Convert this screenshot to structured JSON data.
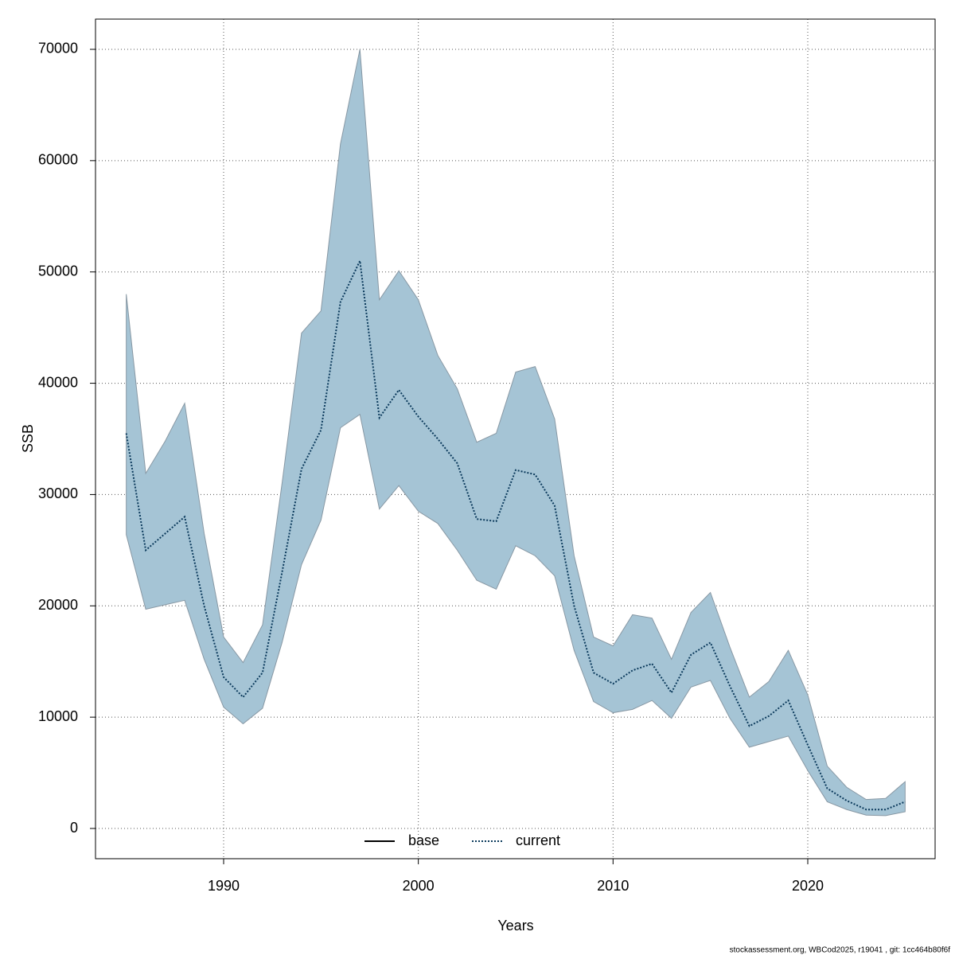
{
  "chart_data": {
    "type": "line",
    "xlabel": "Years",
    "ylabel": "SSB",
    "footer": "stockassessment.org, WBCod2025, r19041 , git: 1cc464b80f6f",
    "x": [
      1985,
      1986,
      1987,
      1988,
      1989,
      1990,
      1991,
      1992,
      1993,
      1994,
      1995,
      1996,
      1997,
      1998,
      1999,
      2000,
      2001,
      2002,
      2003,
      2004,
      2005,
      2006,
      2007,
      2008,
      2009,
      2010,
      2011,
      2012,
      2013,
      2014,
      2015,
      2016,
      2017,
      2018,
      2019,
      2020,
      2021,
      2022,
      2023,
      2024,
      2025
    ],
    "series": [
      {
        "name": "current",
        "color": "#0b3a5c",
        "band_color": "#a5c4d5",
        "values": [
          35500,
          25000,
          26500,
          28000,
          20000,
          13600,
          11800,
          14000,
          23000,
          32300,
          35800,
          47300,
          51000,
          36900,
          39400,
          37000,
          35000,
          32800,
          27800,
          27600,
          32200,
          31800,
          29000,
          20000,
          14000,
          13000,
          14200,
          14800,
          12200,
          15600,
          16700,
          12800,
          9200,
          10100,
          11500,
          7500,
          3600,
          2500,
          1700,
          1700,
          2400
        ],
        "lower": [
          26400,
          19700,
          20100,
          20500,
          15200,
          10900,
          9400,
          10800,
          16700,
          23700,
          27700,
          36000,
          37200,
          28700,
          30800,
          28500,
          27400,
          25000,
          22300,
          21500,
          25400,
          24500,
          22700,
          16000,
          11400,
          10400,
          10700,
          11500,
          9900,
          12700,
          13300,
          9900,
          7300,
          7800,
          8300,
          5200,
          2400,
          1700,
          1200,
          1150,
          1500
        ],
        "upper": [
          48000,
          31900,
          34800,
          38200,
          26500,
          17200,
          14900,
          18300,
          31000,
          44500,
          46500,
          61500,
          70000,
          47500,
          50100,
          47500,
          42500,
          39500,
          34700,
          35500,
          41000,
          41500,
          36800,
          24500,
          17200,
          16400,
          19200,
          18900,
          15200,
          19400,
          21200,
          16300,
          11800,
          13200,
          16000,
          12000,
          5600,
          3700,
          2600,
          2700,
          4200
        ]
      }
    ],
    "legend": [
      {
        "name": "base",
        "color": "#000000",
        "dash": "solid"
      },
      {
        "name": "current",
        "color": "#0b3a5c",
        "dash": "dotted"
      }
    ],
    "legend_position": "bottom",
    "xlim": [
      1983.42,
      2026.54
    ],
    "ylim": [
      -2717,
      72716
    ],
    "xticks": [
      1990,
      2000,
      2010,
      2020
    ],
    "yticks": [
      0,
      10000,
      20000,
      30000,
      40000,
      50000,
      60000,
      70000
    ],
    "grid": true
  }
}
